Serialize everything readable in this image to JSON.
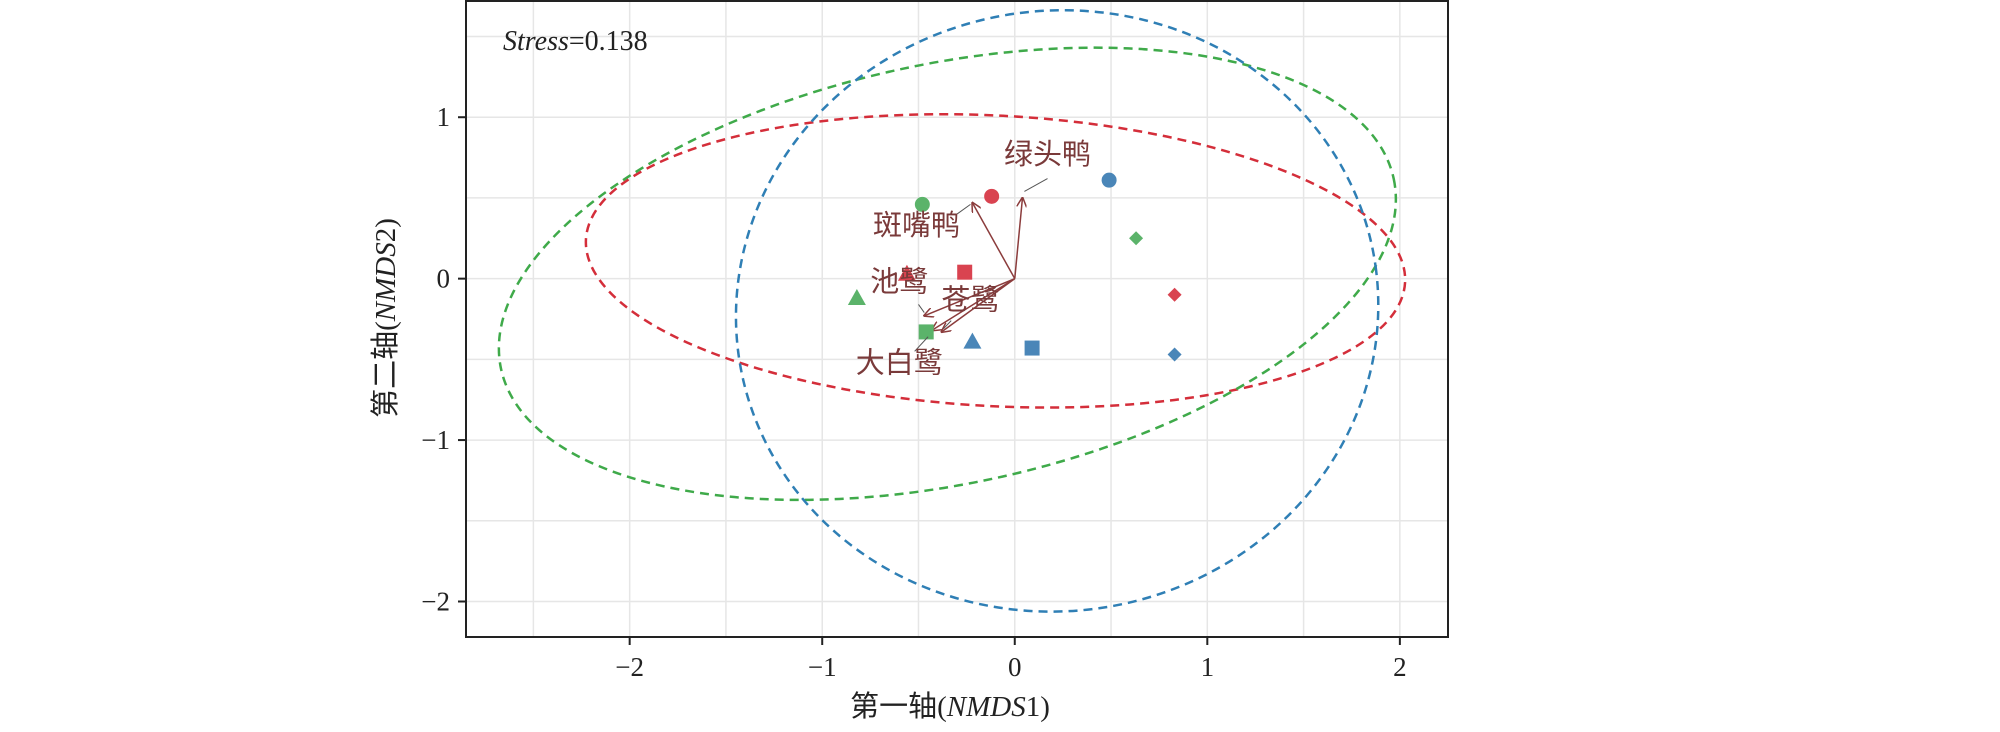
{
  "chart_data": {
    "type": "scatter",
    "title": "",
    "xlabel": "第一轴(NMDS1)",
    "xlabel_parts": [
      "第一轴(",
      "NMDS",
      "1)"
    ],
    "ylabel": "第二轴(NMDS2)",
    "ylabel_parts": [
      "第二轴(",
      "NMDS",
      "2)"
    ],
    "xlim": [
      -2.85,
      2.25
    ],
    "ylim": [
      -2.22,
      1.72
    ],
    "x_ticks": [
      -2,
      -1,
      0,
      1,
      2
    ],
    "x_tick_labels": [
      "−2",
      "−1",
      "0",
      "1",
      "2"
    ],
    "y_ticks": [
      -2,
      -1,
      0,
      1
    ],
    "y_tick_labels": [
      "−2",
      "−1",
      "0",
      "1"
    ],
    "grid": true,
    "annotation": {
      "label": "Stress",
      "value": "=0.138",
      "text": "Stress=0.138"
    },
    "colors": {
      "red": "#d94350",
      "green": "#5bb36a",
      "blue": "#4a86b8",
      "ellipse_red": "#d42e3a",
      "ellipse_green": "#3faa4a",
      "ellipse_blue": "#2f7fb5",
      "species": "#8b3c3c",
      "grid": "#e6e6e6",
      "axis": "#222222"
    },
    "series": [
      {
        "color": "red",
        "points": [
          {
            "x": -0.12,
            "y": 0.51,
            "shape": "circle"
          },
          {
            "x": -0.56,
            "y": 0.03,
            "shape": "triangle"
          },
          {
            "x": -0.26,
            "y": 0.04,
            "shape": "square"
          },
          {
            "x": 0.83,
            "y": -0.1,
            "shape": "diamond"
          }
        ]
      },
      {
        "color": "green",
        "points": [
          {
            "x": -0.48,
            "y": 0.46,
            "shape": "circle"
          },
          {
            "x": -0.82,
            "y": -0.12,
            "shape": "triangle"
          },
          {
            "x": -0.46,
            "y": -0.33,
            "shape": "square"
          },
          {
            "x": 0.63,
            "y": 0.25,
            "shape": "diamond"
          }
        ]
      },
      {
        "color": "blue",
        "points": [
          {
            "x": 0.49,
            "y": 0.61,
            "shape": "circle"
          },
          {
            "x": -0.22,
            "y": -0.39,
            "shape": "triangle"
          },
          {
            "x": 0.09,
            "y": -0.43,
            "shape": "square"
          },
          {
            "x": 0.83,
            "y": -0.47,
            "shape": "diamond"
          }
        ]
      }
    ],
    "ellipses": [
      {
        "color": "ellipse_red",
        "cx": -0.1,
        "cy": 0.11,
        "rx": 2.13,
        "ry": 0.9,
        "angle": -3
      },
      {
        "color": "ellipse_green",
        "cx": -0.35,
        "cy": 0.03,
        "rx": 2.37,
        "ry": 1.3,
        "angle": 12
      },
      {
        "color": "ellipse_blue",
        "cx": 0.22,
        "cy": -0.2,
        "rx": 1.67,
        "ry": 1.86,
        "angle": 8
      }
    ],
    "vectors": [
      {
        "name": "绿头鸭",
        "x": 0.04,
        "y": 0.5,
        "label_x": 0.17,
        "label_y": 0.71,
        "leader": [
          [
            0.17,
            0.62
          ],
          [
            0.05,
            0.54
          ]
        ]
      },
      {
        "name": "斑嘴鸭",
        "x": -0.22,
        "y": 0.47,
        "label_x": -0.51,
        "label_y": 0.27,
        "leader": [
          [
            -0.3,
            0.4
          ],
          [
            -0.23,
            0.46
          ]
        ]
      },
      {
        "name": "池鹭",
        "x": -0.47,
        "y": -0.23,
        "label_x": -0.6,
        "label_y": -0.08,
        "leader": [
          [
            -0.5,
            -0.16
          ],
          [
            -0.47,
            -0.21
          ]
        ]
      },
      {
        "name": "苍鹭",
        "x": -0.38,
        "y": -0.33,
        "label_x": -0.23,
        "label_y": -0.19,
        "leader": [
          [
            -0.33,
            -0.26
          ],
          [
            -0.37,
            -0.31
          ]
        ]
      },
      {
        "name": "大白鹭",
        "x": -0.43,
        "y": -0.32,
        "label_x": -0.6,
        "label_y": -0.58,
        "leader": [
          [
            -0.52,
            -0.45
          ],
          [
            -0.45,
            -0.36
          ]
        ]
      }
    ]
  }
}
